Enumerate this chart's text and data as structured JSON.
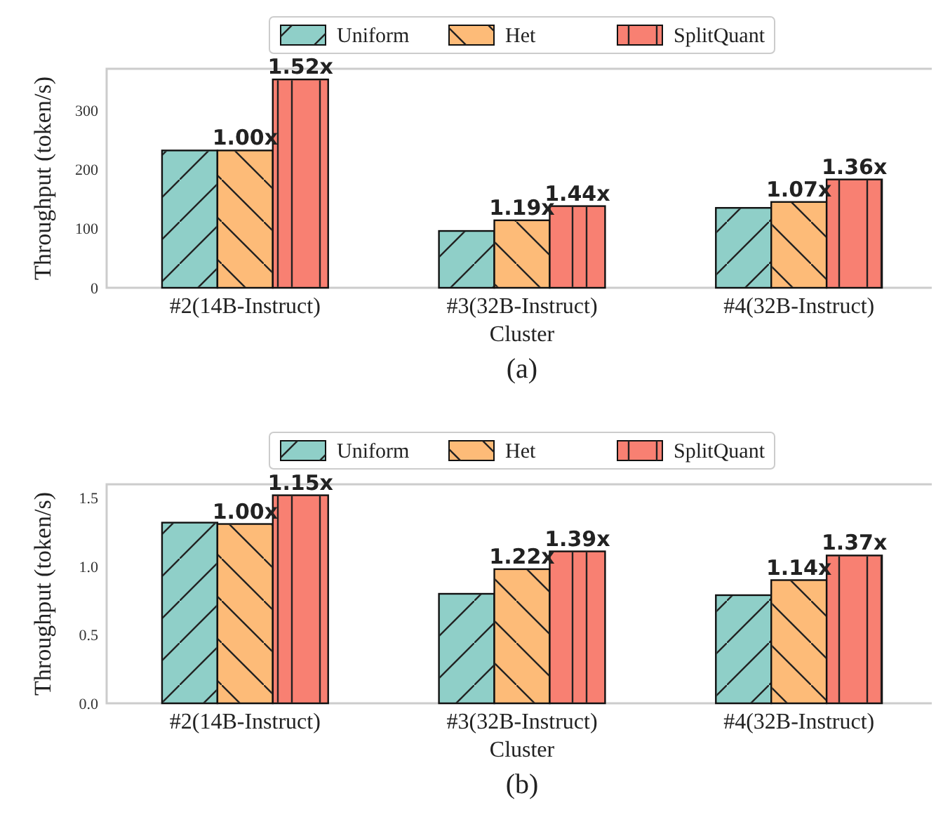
{
  "chart_data": [
    {
      "type": "bar",
      "title": "(a)",
      "xlabel": "Cluster",
      "ylabel": "Throughput (token/s)",
      "categories": [
        "#2(14B-Instruct)",
        "#3(32B-Instruct)",
        "#4(32B-Instruct)"
      ],
      "series": [
        {
          "name": "Uniform",
          "color": "#8fcfc8",
          "values": [
            232,
            96,
            135
          ]
        },
        {
          "name": "Het",
          "color": "#fdbb78",
          "values": [
            232,
            114,
            145
          ]
        },
        {
          "name": "SplitQuant",
          "color": "#f88072",
          "values": [
            352,
            138,
            183
          ]
        }
      ],
      "annotations": [
        "1.00x",
        "1.52x",
        "1.19x",
        "1.44x",
        "1.07x",
        "1.36x"
      ],
      "ylim": [
        0,
        370
      ],
      "yticks": [
        0,
        100,
        200,
        300
      ],
      "grid": false,
      "legend": "top"
    },
    {
      "type": "bar",
      "title": "(b)",
      "xlabel": "Cluster",
      "ylabel": "Throughput (token/s)",
      "categories": [
        "#2(14B-Instruct)",
        "#3(32B-Instruct)",
        "#4(32B-Instruct)"
      ],
      "series": [
        {
          "name": "Uniform",
          "color": "#8fcfc8",
          "values": [
            1.32,
            0.8,
            0.79
          ]
        },
        {
          "name": "Het",
          "color": "#fdbb78",
          "values": [
            1.31,
            0.98,
            0.9
          ]
        },
        {
          "name": "SplitQuant",
          "color": "#f88072",
          "values": [
            1.52,
            1.11,
            1.08
          ]
        }
      ],
      "annotations": [
        "1.00x",
        "1.15x",
        "1.22x",
        "1.39x",
        "1.14x",
        "1.37x"
      ],
      "ylim": [
        0,
        1.6
      ],
      "yticks": [
        {
          "value": 0,
          "label": "0.0"
        },
        {
          "value": 0.5,
          "label": "0.5"
        },
        {
          "value": 1,
          "label": "1.0"
        },
        {
          "value": 1.5,
          "label": "1.5"
        }
      ],
      "grid": false,
      "legend": "top"
    }
  ]
}
